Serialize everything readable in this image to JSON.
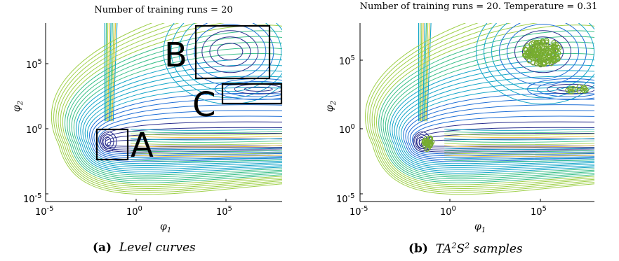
{
  "panels": [
    {
      "title": "Number of training runs = 20",
      "xlabel": "φ1",
      "ylabel": "φ2",
      "xticks": [
        "10-5",
        "100",
        "105"
      ],
      "yticks": [
        "105",
        "100",
        "10-5"
      ],
      "region_labels": [
        "A",
        "B",
        "C"
      ],
      "caption_tag": "(a)",
      "caption_text": "Level curves"
    },
    {
      "title": "Number of training runs = 20. Temperature = 0.31",
      "xlabel": "φ1",
      "ylabel": "φ2",
      "xticks": [
        "10-5",
        "100",
        "105"
      ],
      "yticks": [
        "105",
        "100",
        "10-5"
      ],
      "caption_tag": "(b)",
      "caption_text": "TA2S2 samples"
    }
  ],
  "chart_data": [
    {
      "type": "contour",
      "title": "Number of training runs = 20",
      "xlabel": "φ1",
      "ylabel": "φ2",
      "xscale": "log",
      "yscale": "log",
      "xlim": [
        1e-05,
        100000000.0
      ],
      "ylim": [
        1e-05,
        100000000.0
      ],
      "annotations": [
        "A",
        "B",
        "C"
      ],
      "colors": [
        "#2b2f8e",
        "#1f6fd6",
        "#16a6c9",
        "#3cc08a",
        "#9fd04a",
        "#f0c23a"
      ]
    },
    {
      "type": "contour+scatter",
      "title": "Number of training runs = 20. Temperature = 0.31",
      "xlabel": "φ1",
      "ylabel": "φ2",
      "xscale": "log",
      "yscale": "log",
      "xlim": [
        1e-05,
        100000000.0
      ],
      "ylim": [
        1e-05,
        100000000.0
      ],
      "sample_color": "#77ac30"
    }
  ]
}
